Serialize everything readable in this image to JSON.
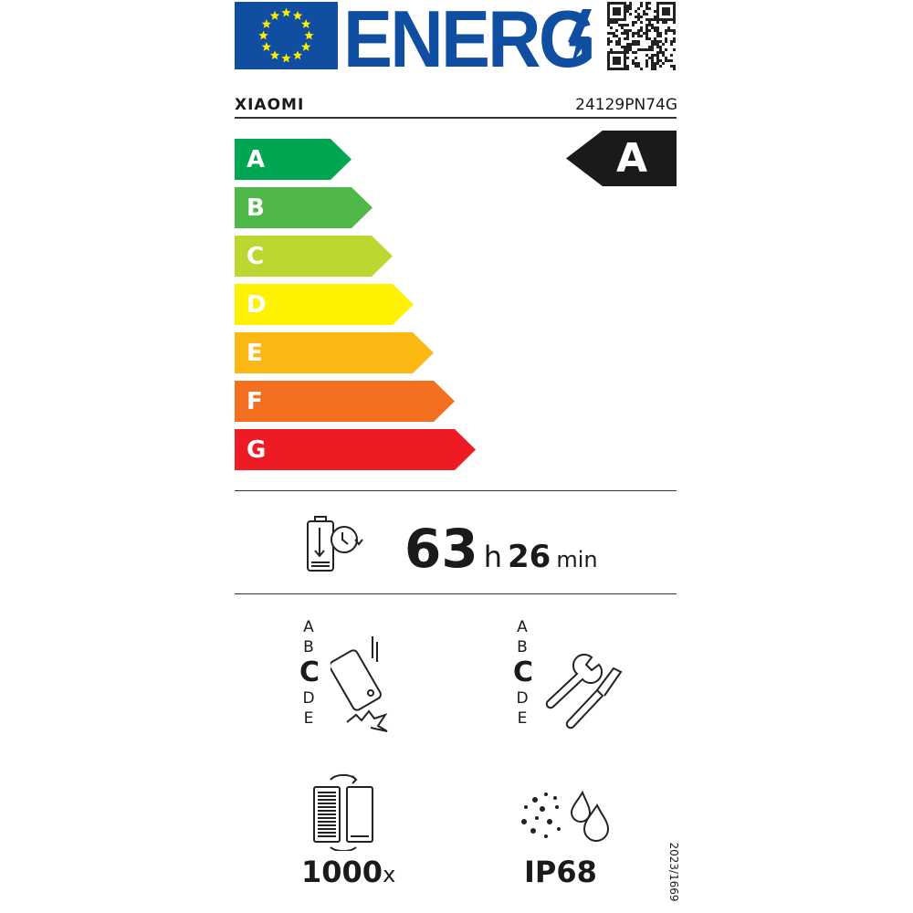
{
  "header": {
    "logo_text": "ENERG",
    "brand": "XIAOMI",
    "model": "24129PN74G"
  },
  "scale": {
    "classes": [
      {
        "letter": "A",
        "color": "#00a651"
      },
      {
        "letter": "B",
        "color": "#50b848"
      },
      {
        "letter": "C",
        "color": "#bed630"
      },
      {
        "letter": "D",
        "color": "#fff200"
      },
      {
        "letter": "E",
        "color": "#fdb913"
      },
      {
        "letter": "F",
        "color": "#f37021"
      },
      {
        "letter": "G",
        "color": "#ed1c24"
      }
    ],
    "rating": "A"
  },
  "battery_endurance": {
    "hours": "63",
    "h_unit": "h",
    "minutes": "26",
    "min_unit": "min",
    "icon": "battery-clock-icon"
  },
  "drop_resistance": {
    "classes": [
      "A",
      "B",
      "C",
      "D",
      "E"
    ],
    "selected": "C",
    "icon": "phone-drop-icon"
  },
  "repairability": {
    "classes": [
      "A",
      "B",
      "C",
      "D",
      "E"
    ],
    "selected": "C",
    "icon": "wrench-screwdriver-icon"
  },
  "battery_cycles": {
    "value": "1000",
    "unit": "x",
    "icon": "battery-cycle-icon"
  },
  "ingress_protection": {
    "value": "IP68",
    "icon": "dust-water-icon"
  },
  "regulation": "2023/1669"
}
